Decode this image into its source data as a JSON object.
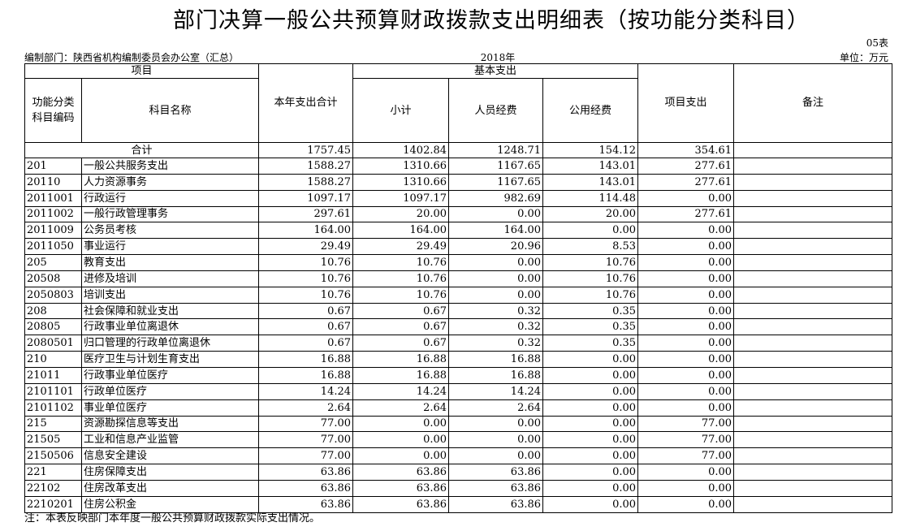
{
  "header": {
    "title": "部门决算一般公共预算财政拨款支出明细表（按功能分类科目）",
    "table_no": "05表",
    "unit_label": "编制部门：陕西省机构编制委员会办公室（汇总）",
    "year": "2018年",
    "unit": "单位：万元"
  },
  "columns": {
    "project": "项目",
    "basic": "基本支出",
    "code": "功能分类科目编码",
    "name": "科目名称",
    "total": "本年支出合计",
    "subtotal": "小计",
    "personnel": "人员经费",
    "public": "公用经费",
    "project_exp": "项目支出",
    "remark": "备注"
  },
  "total_row": {
    "label": "合计",
    "total": "1757.45",
    "subtotal": "1402.84",
    "personnel": "1248.71",
    "public": "154.12",
    "project_exp": "354.61",
    "remark": ""
  },
  "rows": [
    {
      "code": "201",
      "name": "一般公共服务支出",
      "total": "1588.27",
      "subtotal": "1310.66",
      "personnel": "1167.65",
      "public": "143.01",
      "project_exp": "277.61",
      "remark": ""
    },
    {
      "code": "20110",
      "name": "人力资源事务",
      "total": "1588.27",
      "subtotal": "1310.66",
      "personnel": "1167.65",
      "public": "143.01",
      "project_exp": "277.61",
      "remark": ""
    },
    {
      "code": "2011001",
      "name": "行政运行",
      "total": "1097.17",
      "subtotal": "1097.17",
      "personnel": "982.69",
      "public": "114.48",
      "project_exp": "0.00",
      "remark": ""
    },
    {
      "code": "2011002",
      "name": "一般行政管理事务",
      "total": "297.61",
      "subtotal": "20.00",
      "personnel": "0.00",
      "public": "20.00",
      "project_exp": "277.61",
      "remark": ""
    },
    {
      "code": "2011009",
      "name": "公务员考核",
      "total": "164.00",
      "subtotal": "164.00",
      "personnel": "164.00",
      "public": "0.00",
      "project_exp": "0.00",
      "remark": ""
    },
    {
      "code": "2011050",
      "name": "事业运行",
      "total": "29.49",
      "subtotal": "29.49",
      "personnel": "20.96",
      "public": "8.53",
      "project_exp": "0.00",
      "remark": ""
    },
    {
      "code": "205",
      "name": "教育支出",
      "total": "10.76",
      "subtotal": "10.76",
      "personnel": "0.00",
      "public": "10.76",
      "project_exp": "0.00",
      "remark": ""
    },
    {
      "code": "20508",
      "name": "进修及培训",
      "total": "10.76",
      "subtotal": "10.76",
      "personnel": "0.00",
      "public": "10.76",
      "project_exp": "0.00",
      "remark": ""
    },
    {
      "code": "2050803",
      "name": "培训支出",
      "total": "10.76",
      "subtotal": "10.76",
      "personnel": "0.00",
      "public": "10.76",
      "project_exp": "0.00",
      "remark": ""
    },
    {
      "code": "208",
      "name": "社会保障和就业支出",
      "total": "0.67",
      "subtotal": "0.67",
      "personnel": "0.32",
      "public": "0.35",
      "project_exp": "0.00",
      "remark": ""
    },
    {
      "code": "20805",
      "name": "行政事业单位离退休",
      "total": "0.67",
      "subtotal": "0.67",
      "personnel": "0.32",
      "public": "0.35",
      "project_exp": "0.00",
      "remark": ""
    },
    {
      "code": "2080501",
      "name": "归口管理的行政单位离退休",
      "total": "0.67",
      "subtotal": "0.67",
      "personnel": "0.32",
      "public": "0.35",
      "project_exp": "0.00",
      "remark": ""
    },
    {
      "code": "210",
      "name": "医疗卫生与计划生育支出",
      "total": "16.88",
      "subtotal": "16.88",
      "personnel": "16.88",
      "public": "0.00",
      "project_exp": "0.00",
      "remark": ""
    },
    {
      "code": "21011",
      "name": "行政事业单位医疗",
      "total": "16.88",
      "subtotal": "16.88",
      "personnel": "16.88",
      "public": "0.00",
      "project_exp": "0.00",
      "remark": ""
    },
    {
      "code": "2101101",
      "name": "行政单位医疗",
      "total": "14.24",
      "subtotal": "14.24",
      "personnel": "14.24",
      "public": "0.00",
      "project_exp": "0.00",
      "remark": ""
    },
    {
      "code": "2101102",
      "name": "事业单位医疗",
      "total": "2.64",
      "subtotal": "2.64",
      "personnel": "2.64",
      "public": "0.00",
      "project_exp": "0.00",
      "remark": ""
    },
    {
      "code": "215",
      "name": "资源勘探信息等支出",
      "total": "77.00",
      "subtotal": "0.00",
      "personnel": "0.00",
      "public": "0.00",
      "project_exp": "77.00",
      "remark": ""
    },
    {
      "code": "21505",
      "name": "工业和信息产业监管",
      "total": "77.00",
      "subtotal": "0.00",
      "personnel": "0.00",
      "public": "0.00",
      "project_exp": "77.00",
      "remark": ""
    },
    {
      "code": "2150506",
      "name": "信息安全建设",
      "total": "77.00",
      "subtotal": "0.00",
      "personnel": "0.00",
      "public": "0.00",
      "project_exp": "77.00",
      "remark": ""
    },
    {
      "code": "221",
      "name": "住房保障支出",
      "total": "63.86",
      "subtotal": "63.86",
      "personnel": "63.86",
      "public": "0.00",
      "project_exp": "0.00",
      "remark": ""
    },
    {
      "code": "22102",
      "name": "住房改革支出",
      "total": "63.86",
      "subtotal": "63.86",
      "personnel": "63.86",
      "public": "0.00",
      "project_exp": "0.00",
      "remark": ""
    },
    {
      "code": "2210201",
      "name": "住房公积金",
      "total": "63.86",
      "subtotal": "63.86",
      "personnel": "63.86",
      "public": "0.00",
      "project_exp": "0.00",
      "remark": ""
    }
  ],
  "footer": {
    "note": "注：本表反映部门本年度一般公共预算财政拨款实际支出情况。"
  }
}
